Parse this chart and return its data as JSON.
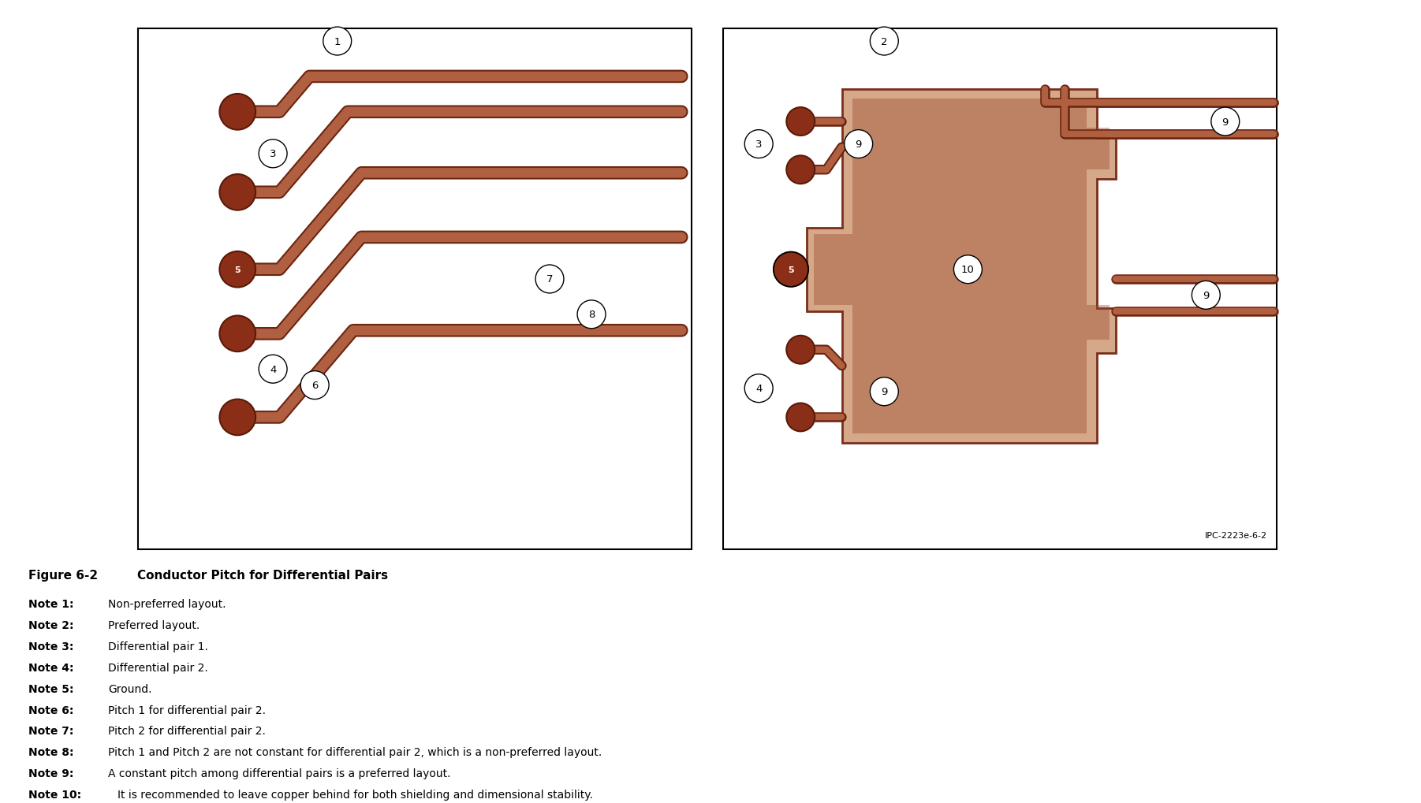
{
  "title": "Figure 6-2   Conductor Pitch for Differential Pairs",
  "notes": [
    [
      "Note 1:",
      "Non-preferred layout."
    ],
    [
      "Note 2:",
      "Preferred layout."
    ],
    [
      "Note 3:",
      "Differential pair 1."
    ],
    [
      "Note 4:",
      "Differential pair 2."
    ],
    [
      "Note 5:",
      "Ground."
    ],
    [
      "Note 6:",
      "Pitch 1 for differential pair 2."
    ],
    [
      "Note 7:",
      "Pitch 2 for differential pair 2."
    ],
    [
      "Note 8:",
      "Pitch 1 and Pitch 2 are not constant for differential pair 2, which is a non-preferred layout."
    ],
    [
      "Note 9:",
      "A constant pitch among differential pairs is a preferred layout."
    ],
    [
      "Note 10:",
      "It is recommended to leave copper behind for both shielding and dimensional stability."
    ]
  ],
  "watermark": "IPC-2223e-6-2",
  "copper_dark": "#7A2E1A",
  "copper_mid": "#9B4A30",
  "copper_light": "#C4856A",
  "copper_fill": "#C49070",
  "copper_pale": "#D4A888",
  "background": "#FFFFFF",
  "border_color": "#000000",
  "pad_fill": "#8B2E18",
  "pad_edge": "#5A1A08",
  "trace_fill": "#B06040",
  "trace_edge": "#6B2510",
  "label_circle_r": 0.22,
  "tw": 9
}
